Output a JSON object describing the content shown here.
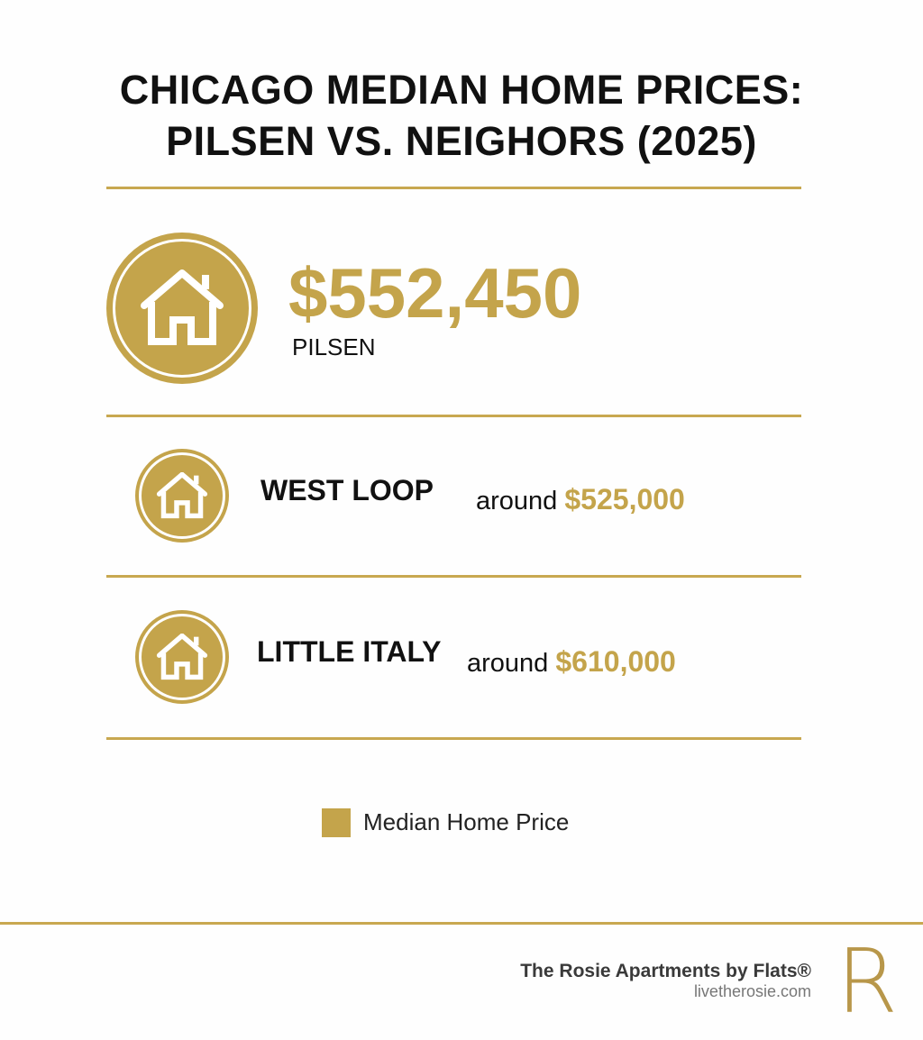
{
  "header": {
    "title_line1": "CHICAGO MEDIAN HOME PRICES:",
    "title_line2": "PILSEN VS. NEIGHORS (2025)"
  },
  "colors": {
    "accent": "#c4a44b",
    "text": "#111111"
  },
  "featured": {
    "price": "$552,450",
    "label": "PILSEN",
    "icon": "house-icon"
  },
  "neighbors": [
    {
      "name": "WEST LOOP",
      "prefix": "around",
      "price": "$525,000",
      "icon": "house-icon"
    },
    {
      "name": "LITTLE ITALY",
      "prefix": "around",
      "price": "$610,000",
      "icon": "house-icon"
    }
  ],
  "legend": {
    "label": "Median Home Price"
  },
  "footer": {
    "brand": "The Rosie Apartments by Flats®",
    "url": "livetherosie.com",
    "logo_letter": "R"
  },
  "chart_data": {
    "type": "table",
    "title": "CHICAGO MEDIAN HOME PRICES: PILSEN VS. NEIGHORS (2025)",
    "categories": [
      "PILSEN",
      "WEST LOOP",
      "LITTLE ITALY"
    ],
    "series": [
      {
        "name": "Median Home Price",
        "values": [
          552450,
          525000,
          610000
        ]
      }
    ]
  }
}
